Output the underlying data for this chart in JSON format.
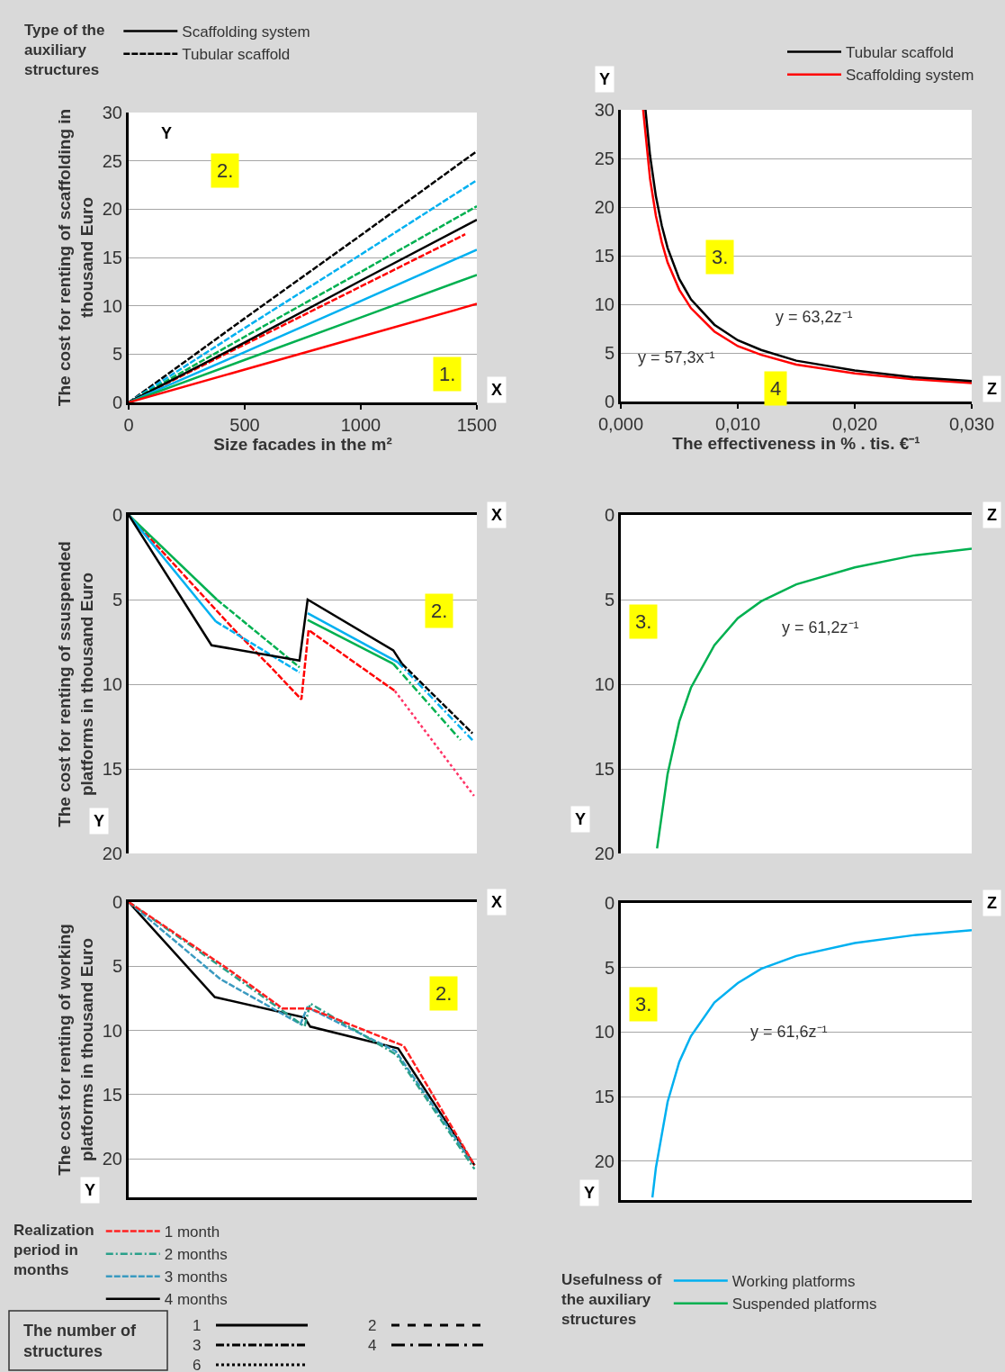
{
  "chart_data": [
    {
      "type": "line",
      "xlabel": "Size facades in the m²",
      "ylabel": "The cost for renting of scaffolding in thousand Euro",
      "legend_title": "Type of the auxiliary structures",
      "legend": "top",
      "grid": "y",
      "xlim": [
        0,
        1500
      ],
      "xticks": [
        0,
        500,
        1000,
        1500
      ],
      "ylim": [
        0,
        30
      ],
      "yticks": [
        0,
        5,
        10,
        15,
        20,
        25,
        30
      ],
      "x": [
        0,
        500,
        1000,
        1500
      ],
      "series": [
        {
          "color": "#ff0000",
          "line_style": "solid",
          "values": [
            0,
            3.4,
            6.8,
            10.2
          ]
        },
        {
          "color": "#00b050",
          "line_style": "solid",
          "values": [
            0,
            4.4,
            8.8,
            13.2
          ]
        },
        {
          "color": "#00b0f0",
          "line_style": "solid",
          "values": [
            0,
            5.2,
            10.5,
            15.8
          ]
        },
        {
          "name": "Scaffolding system",
          "color": "#000000",
          "line_style": "solid",
          "values": [
            0,
            6.2,
            12.6,
            18.9
          ]
        },
        {
          "color": "#ff0000",
          "line_style": "dashed",
          "x": [
            0,
            500,
            1000,
            1450
          ],
          "values": [
            0,
            6.0,
            12.0,
            17.4
          ]
        },
        {
          "color": "#00b050",
          "line_style": "dashed",
          "values": [
            0,
            6.8,
            13.5,
            20.3
          ]
        },
        {
          "color": "#00b0f0",
          "line_style": "dashed",
          "values": [
            0,
            7.7,
            15.3,
            23.0
          ]
        },
        {
          "name": "Tubular scaffold",
          "color": "#000000",
          "line_style": "dashed",
          "values": [
            0,
            8.7,
            17.3,
            26.0
          ]
        }
      ],
      "annotations": [
        "X",
        "Y",
        "1.",
        "2."
      ]
    },
    {
      "type": "line",
      "xlabel": "The effectiveness in % . tis. €⁻¹",
      "legend": "top right",
      "grid": "y",
      "xlim": [
        0,
        0.03
      ],
      "xticks": [
        {
          "value": 0,
          "label": "0,000"
        },
        {
          "value": 0.01,
          "label": "0,010"
        },
        {
          "value": 0.02,
          "label": "0,020"
        },
        {
          "value": 0.03,
          "label": "0,030"
        }
      ],
      "ylim": [
        0,
        30
      ],
      "yticks": [
        0,
        5,
        10,
        15,
        20,
        25,
        30
      ],
      "series": [
        {
          "name": "Tubular scaffold",
          "color": "#000000",
          "x": [
            0.00211,
            0.0025,
            0.003,
            0.0035,
            0.004,
            0.005,
            0.006,
            0.008,
            0.01,
            0.012,
            0.015,
            0.02,
            0.025,
            0.03
          ],
          "values": [
            30.0,
            25.3,
            21.1,
            18.1,
            15.8,
            12.6,
            10.5,
            7.9,
            6.3,
            5.3,
            4.2,
            3.2,
            2.5,
            2.1
          ]
        },
        {
          "name": "Scaffolding system",
          "color": "#ff0000",
          "x": [
            0.00191,
            0.0025,
            0.003,
            0.0035,
            0.004,
            0.005,
            0.006,
            0.008,
            0.01,
            0.012,
            0.015,
            0.02,
            0.025,
            0.03
          ],
          "values": [
            30.0,
            22.9,
            19.1,
            16.4,
            14.3,
            11.5,
            9.6,
            7.2,
            5.7,
            4.8,
            3.8,
            2.9,
            2.3,
            1.9
          ]
        }
      ],
      "annotations": [
        "Z",
        "Y",
        "3.",
        "4",
        "y = 63,2z⁻¹",
        "y = 57,3x⁻¹"
      ]
    },
    {
      "type": "line",
      "ylabel": "The cost for renting of ssuspended platforms in thousand Euro",
      "grid": "y",
      "tick_labels": "y",
      "xlim": [
        0,
        1500
      ],
      "ylim": [
        20,
        0
      ],
      "yticks": [
        0,
        5,
        10,
        15,
        20
      ],
      "series": [
        {
          "color": "#000000",
          "line_style": "solid",
          "x": [
            0,
            357,
            736,
            771,
            1140,
            1178
          ],
          "values": [
            0,
            7.7,
            8.6,
            5.0,
            8.0,
            8.8
          ]
        },
        {
          "color": "#000000",
          "line_style": "dashed",
          "x": [
            1178,
            1481
          ],
          "values": [
            8.8,
            12.9
          ]
        },
        {
          "color": "#00b0f0",
          "line_style": "solid",
          "x": [
            0,
            376
          ],
          "values": [
            0,
            6.3
          ]
        },
        {
          "color": "#00b0f0",
          "line_style": "dashed",
          "x": [
            376,
            736
          ],
          "values": [
            6.3,
            9.3
          ]
        },
        {
          "color": "#00b0f0",
          "line_style": "solid",
          "x": [
            771,
            1160
          ],
          "values": [
            5.8,
            8.7
          ]
        },
        {
          "color": "#00b0f0",
          "line_style": "dashdot",
          "x": [
            1160,
            1481
          ],
          "values": [
            8.7,
            13.3
          ]
        },
        {
          "color": "#00b050",
          "line_style": "solid",
          "x": [
            0,
            380
          ],
          "values": [
            0,
            5.0
          ]
        },
        {
          "color": "#00b050",
          "line_style": "dashed",
          "x": [
            380,
            736
          ],
          "values": [
            5.0,
            9.0
          ]
        },
        {
          "color": "#00b050",
          "line_style": "solid",
          "x": [
            771,
            1140
          ],
          "values": [
            6.2,
            8.8
          ]
        },
        {
          "color": "#00b050",
          "line_style": "dashdot",
          "x": [
            1140,
            1430
          ],
          "values": [
            8.8,
            13.3
          ]
        },
        {
          "color": "#ff0000",
          "line_style": "dashed",
          "x": [
            0,
            449,
            620,
            744,
            775,
            1147
          ],
          "values": [
            0,
            6.7,
            9.1,
            10.9,
            6.8,
            10.4
          ]
        },
        {
          "color": "#ff3366",
          "line_style": "dotted",
          "x": [
            1147,
            1488
          ],
          "values": [
            10.4,
            16.6
          ]
        }
      ],
      "annotations": [
        "X",
        "Y",
        "2."
      ]
    },
    {
      "type": "line",
      "grid": "y",
      "tick_labels": "y",
      "legend": "bottom",
      "xlim": [
        0,
        0.03
      ],
      "ylim": [
        20,
        0
      ],
      "yticks": [
        0,
        5,
        10,
        15,
        20
      ],
      "series": [
        {
          "name": "Suspended platforms",
          "color": "#00b050",
          "x": [
            0.0031,
            0.004,
            0.005,
            0.006,
            0.008,
            0.01,
            0.012,
            0.015,
            0.02,
            0.025,
            0.03
          ],
          "values": [
            19.7,
            15.3,
            12.2,
            10.2,
            7.7,
            6.1,
            5.1,
            4.1,
            3.1,
            2.4,
            2.0
          ]
        }
      ],
      "annotations": [
        "Z",
        "Y",
        "3.",
        "y = 61,2z⁻¹"
      ]
    },
    {
      "type": "line",
      "ylabel": "The cost for renting of working platforms in thousand Euro",
      "legend_title": "Realization period in months",
      "legend": "bottom",
      "grid": "y",
      "tick_labels": "y",
      "xlim": [
        0,
        1500
      ],
      "ylim": [
        23,
        0
      ],
      "yticks": [
        0,
        5,
        10,
        15,
        20
      ],
      "series": [
        {
          "name": "1 month",
          "color": "#ff2020",
          "line_style": "dashed",
          "x": [
            0,
            427,
            664,
            782,
            1185,
            1490
          ],
          "values": [
            0,
            5.2,
            8.3,
            8.3,
            11.2,
            20.5
          ]
        },
        {
          "name": "2 months",
          "color": "#2aa08a",
          "line_style": "dashdot",
          "x": [
            0,
            395,
            758,
            782,
            1154,
            1490
          ],
          "values": [
            0,
            5.0,
            9.7,
            7.9,
            11.9,
            20.8
          ]
        },
        {
          "name": "3 months",
          "color": "#3a9ac0",
          "line_style": "dashed",
          "x": [
            0,
            395,
            740,
            770,
            1150,
            1480
          ],
          "values": [
            0,
            6.0,
            9.5,
            8.2,
            11.6,
            20.3
          ]
        },
        {
          "name": "4 months",
          "color": "#000000",
          "line_style": "solid",
          "x": [
            0,
            371,
            758,
            782,
            1161,
            1490
          ],
          "values": [
            0,
            7.4,
            9.0,
            9.7,
            11.4,
            20.5
          ]
        }
      ],
      "annotations": [
        "X",
        "Y",
        "2."
      ]
    },
    {
      "type": "line",
      "legend_title": "Usefulness of the auxiliary structures",
      "legend": "bottom",
      "grid": "y",
      "tick_labels": "y",
      "xlim": [
        0,
        0.03
      ],
      "ylim": [
        23,
        0
      ],
      "yticks": [
        0,
        5,
        10,
        15,
        20
      ],
      "series": [
        {
          "name": "Working platforms",
          "color": "#00b0f0",
          "x": [
            0.0027,
            0.003,
            0.004,
            0.005,
            0.006,
            0.008,
            0.01,
            0.012,
            0.015,
            0.02,
            0.025,
            0.03
          ],
          "values": [
            22.8,
            20.5,
            15.4,
            12.3,
            10.3,
            7.7,
            6.2,
            5.1,
            4.1,
            3.1,
            2.5,
            2.1
          ]
        }
      ],
      "annotations": [
        "Z",
        "Y",
        "3.",
        "y = 61,6z⁻¹"
      ]
    },
    {
      "type": "other",
      "title": "The number of structures",
      "annotations": [
        "1",
        "2",
        "3",
        "4",
        "6"
      ]
    }
  ]
}
